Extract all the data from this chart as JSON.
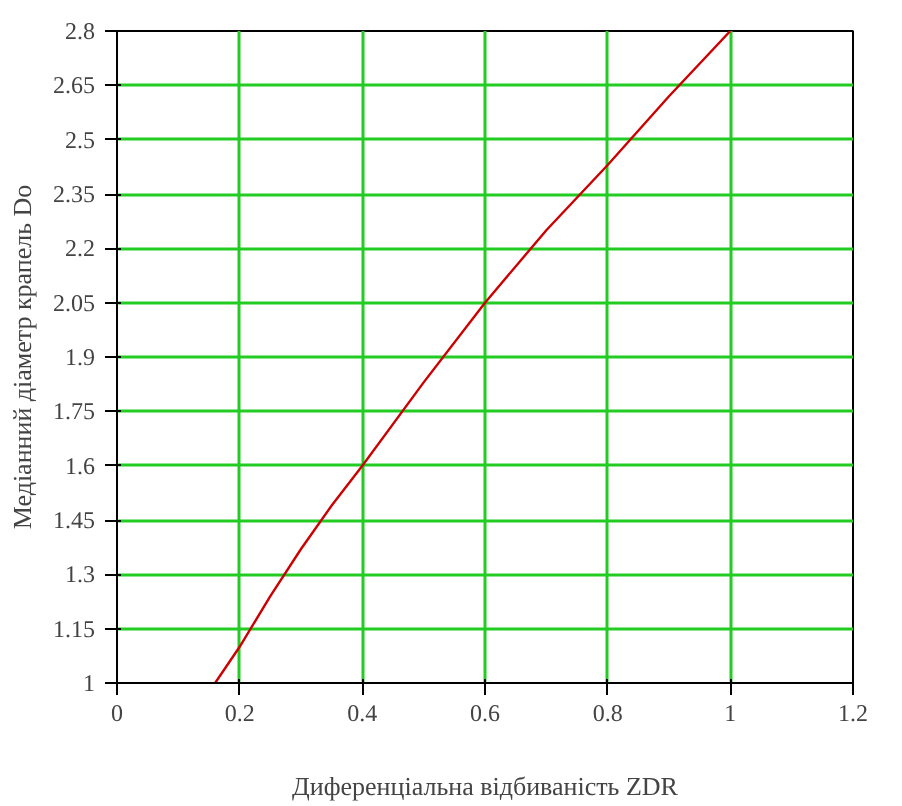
{
  "chart_data": {
    "type": "line",
    "xlabel": "Диференціальна відбиваність ZDR",
    "ylabel": "Медіанний діаметр крапель Do",
    "x": [
      0.16,
      0.2,
      0.25,
      0.3,
      0.35,
      0.4,
      0.5,
      0.6,
      0.7,
      0.8,
      0.9,
      1.0
    ],
    "series": [
      {
        "color": "#cc0000",
        "values": [
          1.0,
          1.1,
          1.24,
          1.37,
          1.49,
          1.6,
          1.83,
          2.05,
          2.25,
          2.43,
          2.62,
          2.8
        ]
      }
    ],
    "xlim": [
      0,
      1.2
    ],
    "ylim": [
      1,
      2.8
    ],
    "xticks": [
      0,
      0.2,
      0.4,
      0.6,
      0.8,
      1,
      1.2
    ],
    "yticks": [
      1,
      1.15,
      1.3,
      1.45,
      1.6,
      1.75,
      1.9,
      2.05,
      2.2,
      2.35,
      2.5,
      2.65,
      2.8
    ],
    "grid": true,
    "marker": "none",
    "line_style": "solid"
  }
}
